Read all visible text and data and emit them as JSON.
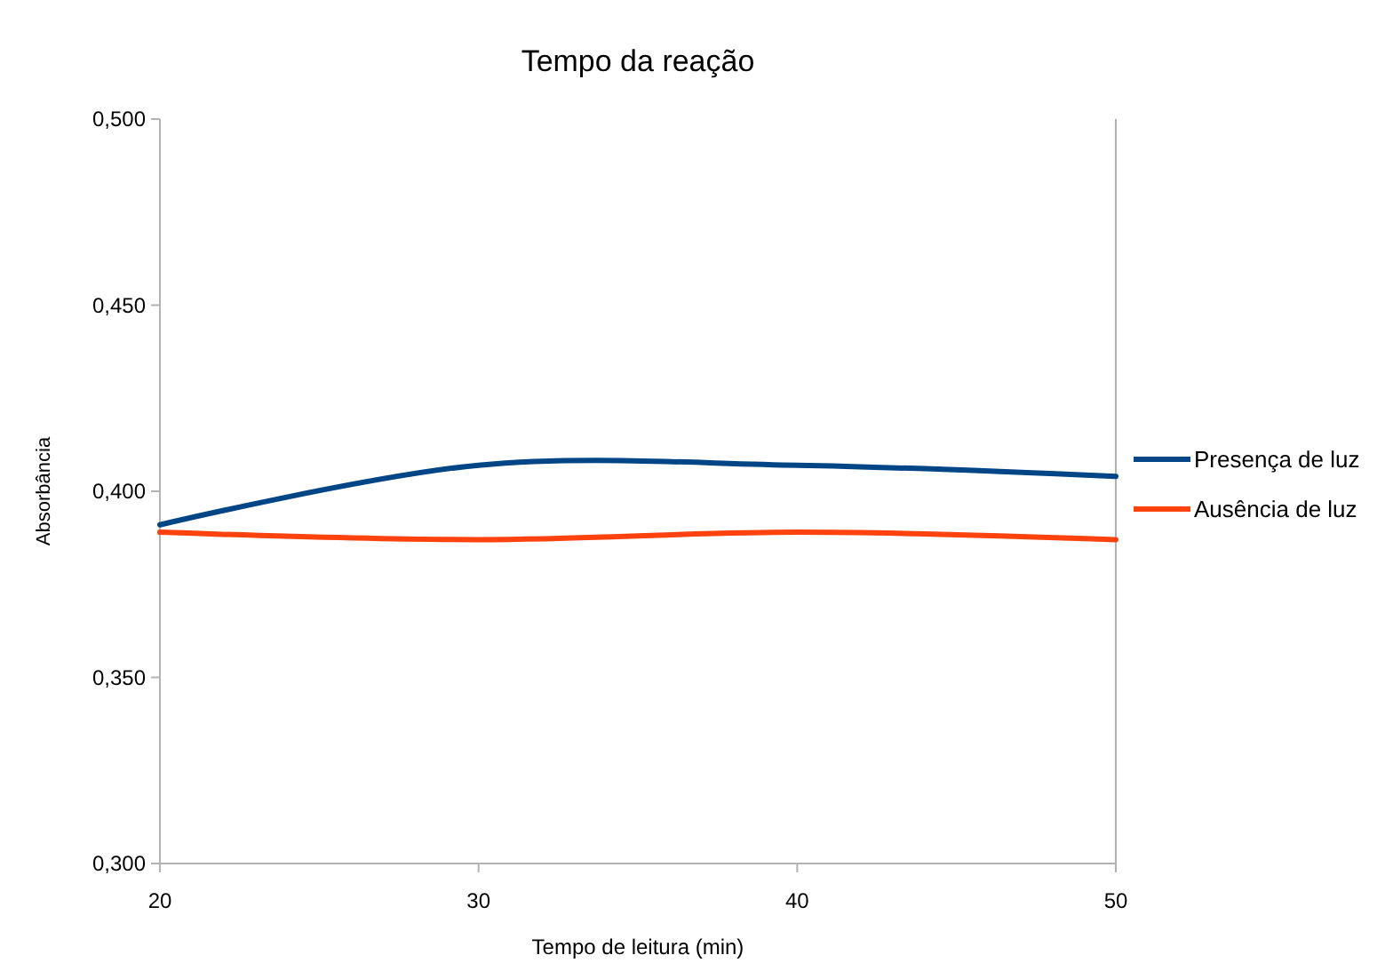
{
  "chart_data": {
    "type": "line",
    "title": "Tempo da reação",
    "xlabel": "Tempo de leitura (min)",
    "ylabel": "Absorbância",
    "x": [
      20,
      30,
      40,
      50
    ],
    "series": [
      {
        "name": "Presença de luz",
        "color": "#004586",
        "values": [
          0.391,
          0.407,
          0.407,
          0.404
        ]
      },
      {
        "name": "Ausência de luz",
        "color": "#ff420e",
        "values": [
          0.389,
          0.387,
          0.389,
          0.387
        ]
      }
    ],
    "xlim": [
      20,
      50
    ],
    "xticks": [
      20,
      30,
      40,
      50
    ],
    "ylim": [
      0.3,
      0.5
    ],
    "yticks": [
      {
        "value": 0.3,
        "label": "0,300"
      },
      {
        "value": 0.35,
        "label": "0,350"
      },
      {
        "value": 0.4,
        "label": "0,400"
      },
      {
        "value": 0.45,
        "label": "0,450"
      },
      {
        "value": 0.5,
        "label": "0,500"
      }
    ],
    "grid": false,
    "legend": "right",
    "marker": "none",
    "line_style": "solid"
  }
}
